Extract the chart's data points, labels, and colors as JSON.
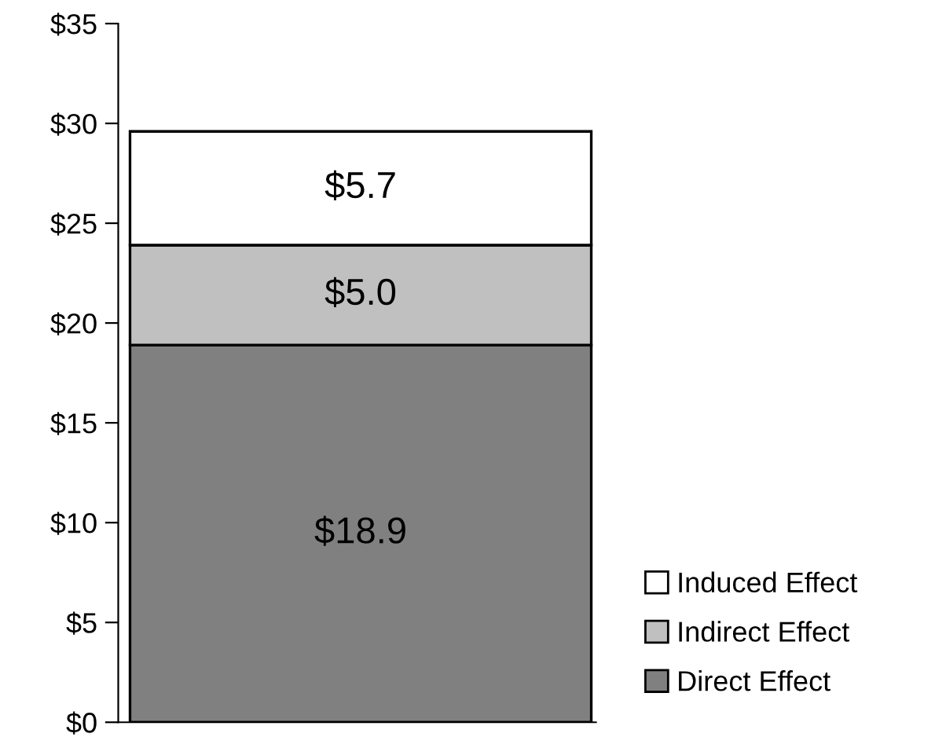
{
  "chart_data": {
    "type": "bar",
    "stacked": true,
    "categories": [
      null
    ],
    "series": [
      {
        "name": "Direct Effect",
        "color": "#808080",
        "values": [
          18.9
        ],
        "value_labels": [
          "$18.9"
        ]
      },
      {
        "name": "Indirect Effect",
        "color": "#c0c0c0",
        "values": [
          5.0
        ],
        "value_labels": [
          "$5.0"
        ]
      },
      {
        "name": "Induced Effect",
        "color": "#ffffff",
        "values": [
          5.7
        ],
        "value_labels": [
          "$5.7"
        ]
      }
    ],
    "ylim": [
      0,
      35
    ],
    "yticks": [
      {
        "value": 0,
        "label": "$0"
      },
      {
        "value": 5,
        "label": "$5"
      },
      {
        "value": 10,
        "label": "$10"
      },
      {
        "value": 15,
        "label": "$15"
      },
      {
        "value": 20,
        "label": "$20"
      },
      {
        "value": 25,
        "label": "$25"
      },
      {
        "value": 30,
        "label": "$30"
      },
      {
        "value": 35,
        "label": "$35"
      }
    ],
    "grid": false,
    "legend": "bottom right"
  }
}
